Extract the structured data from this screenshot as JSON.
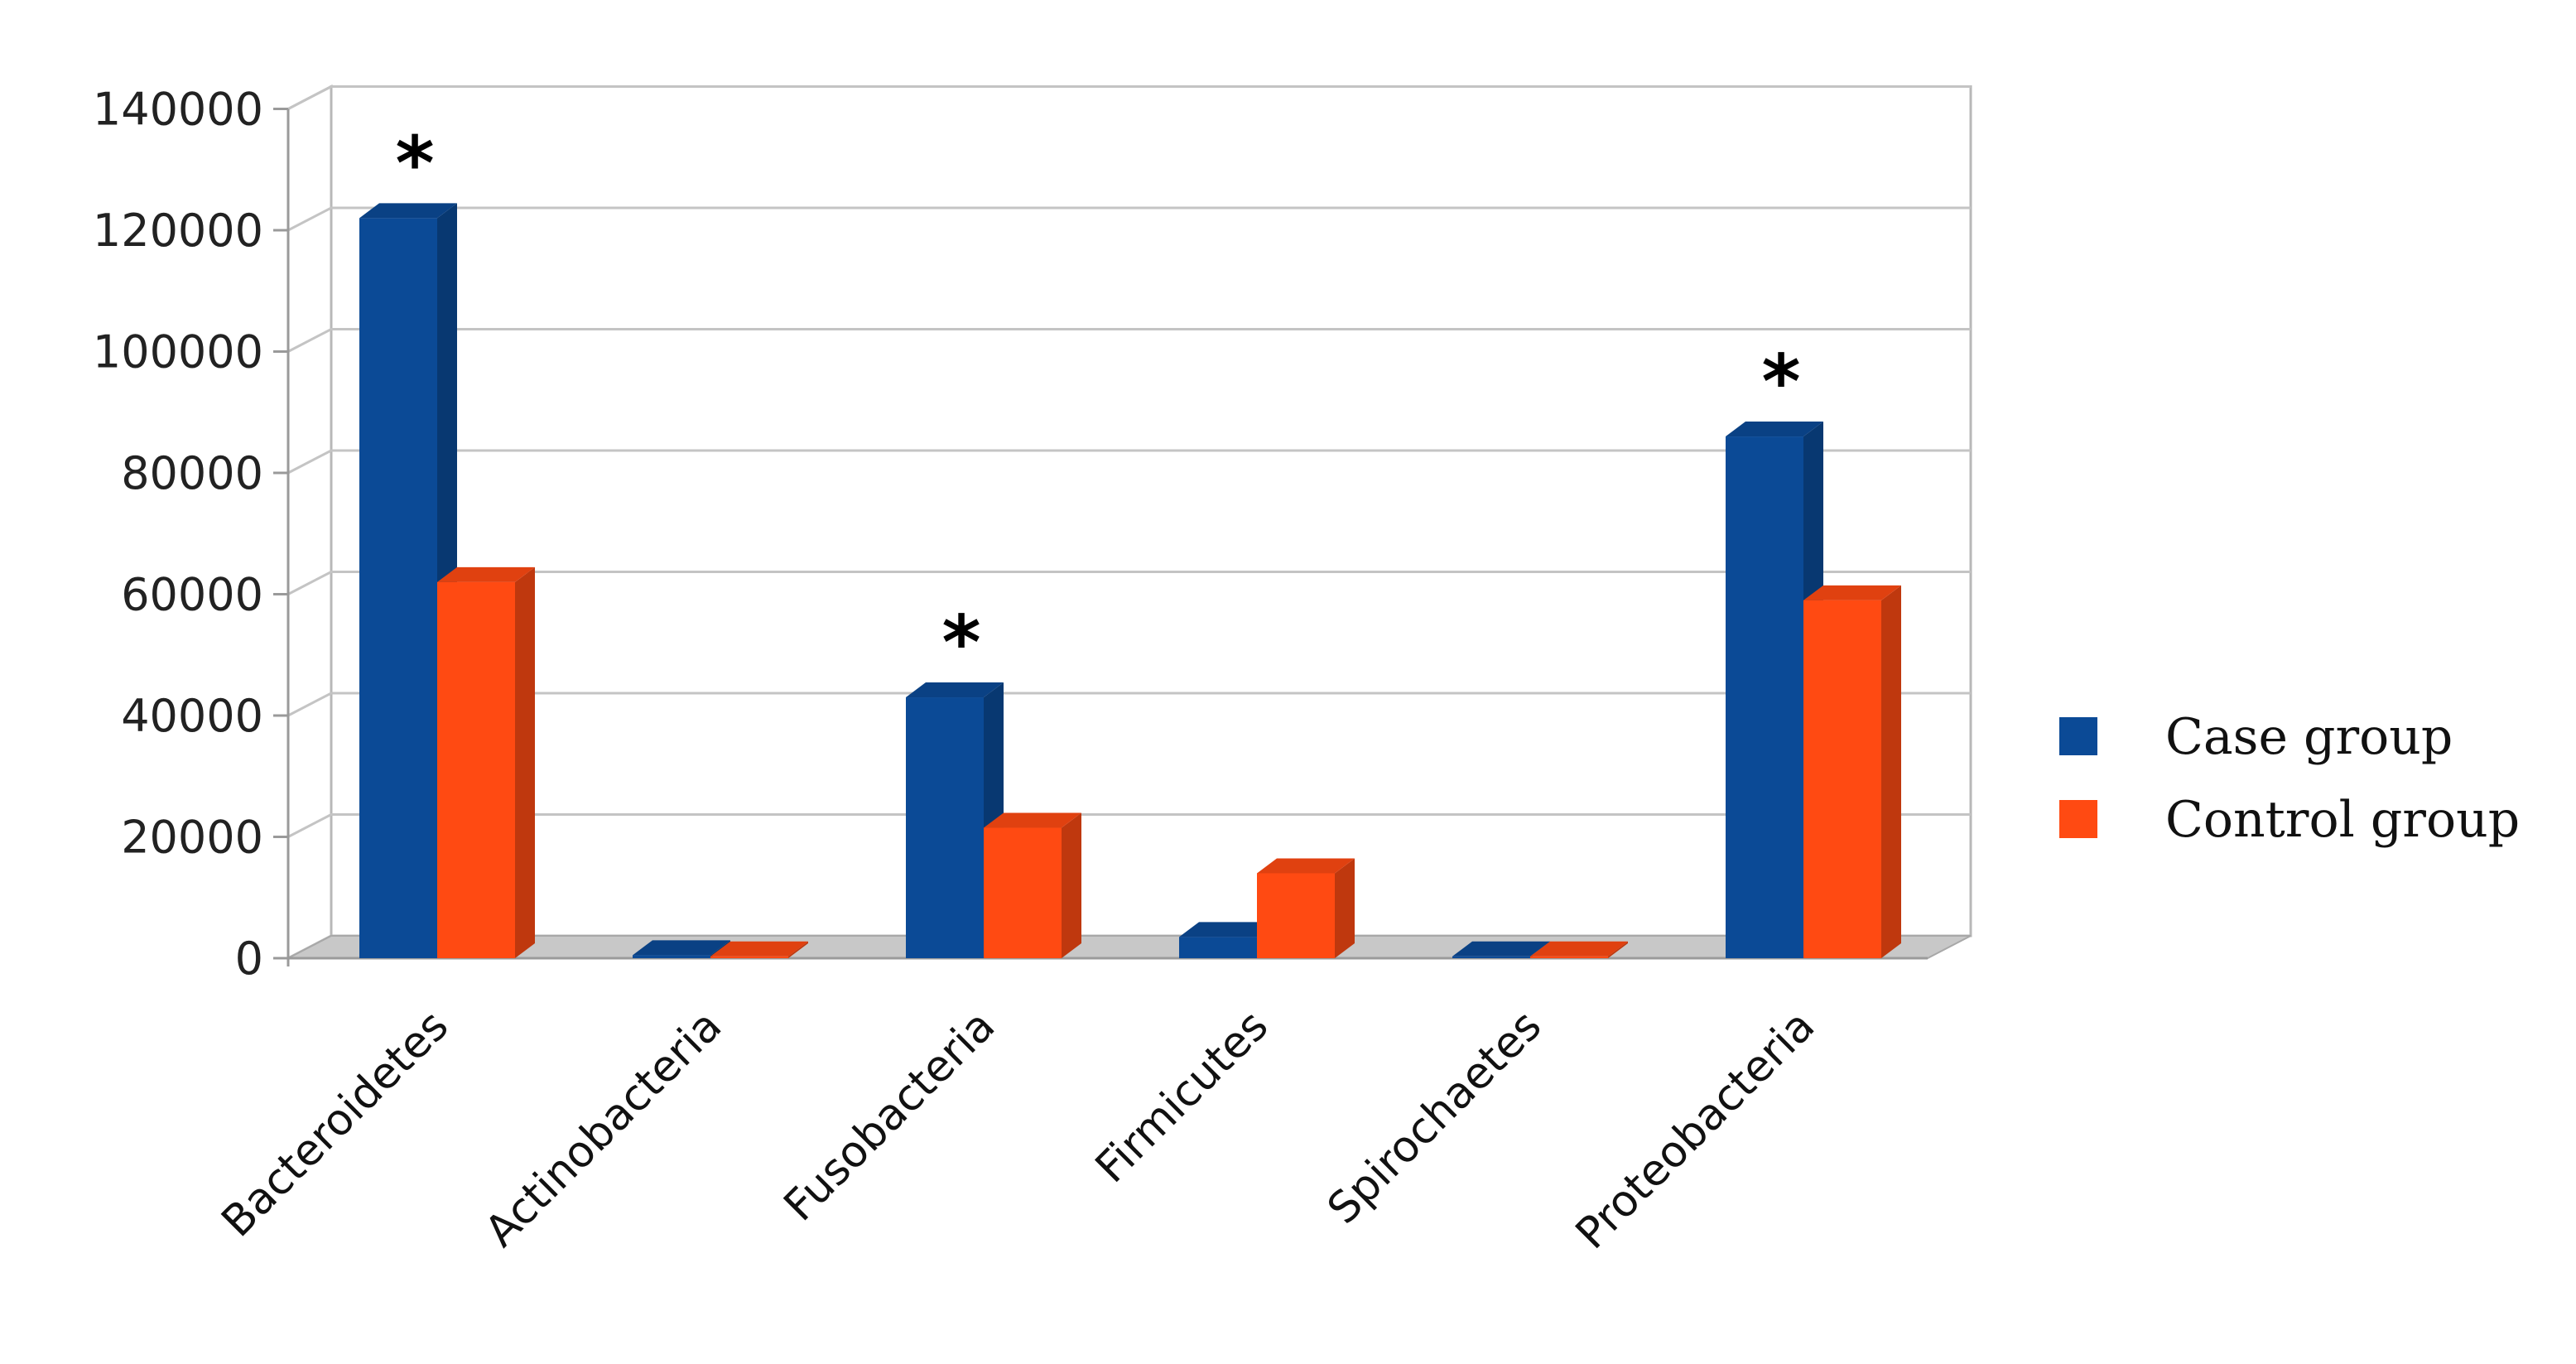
{
  "chart_data": {
    "type": "bar",
    "style": "3d-clustered",
    "title": "",
    "xlabel": "",
    "ylabel": "",
    "ylim": [
      0,
      140000
    ],
    "yticks": [
      0,
      20000,
      40000,
      60000,
      80000,
      100000,
      120000,
      140000
    ],
    "ytick_labels": [
      "0",
      "20000",
      "40000",
      "60000",
      "80000",
      "100000",
      "120000",
      "140000"
    ],
    "grid": true,
    "legend_position": "right",
    "categories": [
      "Bacteroidetes",
      "Actinobacteria",
      "Fusobacteria",
      "Firmicutes",
      "Spirochaetes",
      "Proteobacteria"
    ],
    "series": [
      {
        "name": "Case group",
        "color": "#0B4A96",
        "values": [
          122000,
          500,
          43000,
          3500,
          300,
          86000
        ]
      },
      {
        "name": "Control group",
        "color": "#FF4A12",
        "values": [
          62000,
          300,
          21500,
          14000,
          300,
          59000
        ]
      }
    ],
    "annotations": [
      {
        "text": "*",
        "category": "Bacteroidetes"
      },
      {
        "text": "*",
        "category": "Fusobacteria"
      },
      {
        "text": "*",
        "category": "Proteobacteria"
      }
    ]
  }
}
